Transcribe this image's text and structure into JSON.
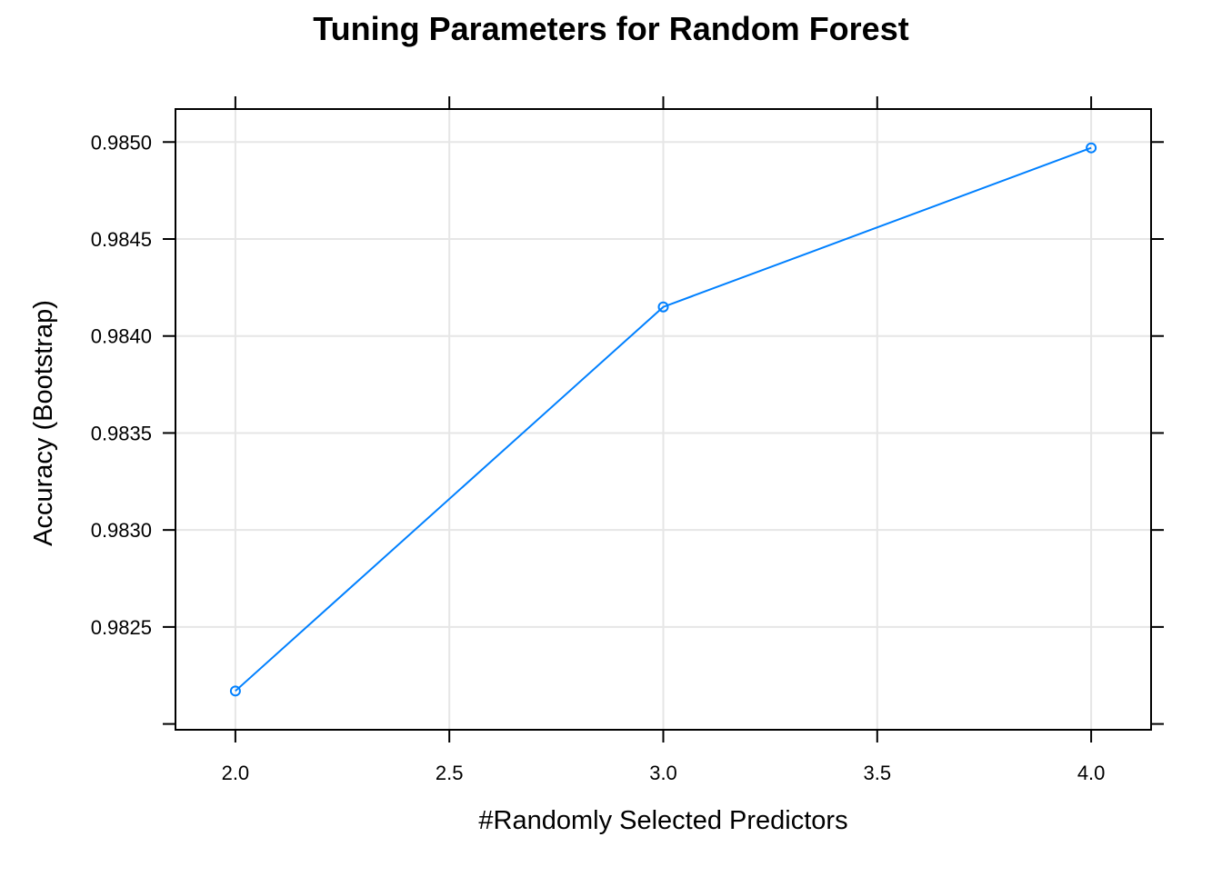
{
  "chart_data": {
    "type": "line",
    "title": "Tuning Parameters for Random Forest",
    "xlabel": "#Randomly Selected Predictors",
    "ylabel": "Accuracy (Bootstrap)",
    "x": [
      2.0,
      3.0,
      4.0
    ],
    "series": [
      {
        "values": [
          0.98217,
          0.98415,
          0.98497
        ],
        "color": "#0080ff",
        "marker": "open-circle"
      }
    ],
    "xlim": [
      1.86,
      4.14
    ],
    "ylim": [
      0.98197,
      0.98517
    ],
    "x_ticks": [
      2.0,
      2.5,
      3.0,
      3.5,
      4.0
    ],
    "x_tick_labels": [
      "2.0",
      "2.5",
      "3.0",
      "3.5",
      "4.0"
    ],
    "y_ticks": [
      0.9825,
      0.983,
      0.9835,
      0.984,
      0.9845,
      0.985
    ],
    "y_tick_labels": [
      "0.9825",
      "0.9830",
      "0.9835",
      "0.9840",
      "0.9845",
      "0.9850"
    ],
    "y_extra_tick": 0.982,
    "grid": true,
    "grid_color": "#e6e6e6",
    "axis_color": "#000000"
  }
}
